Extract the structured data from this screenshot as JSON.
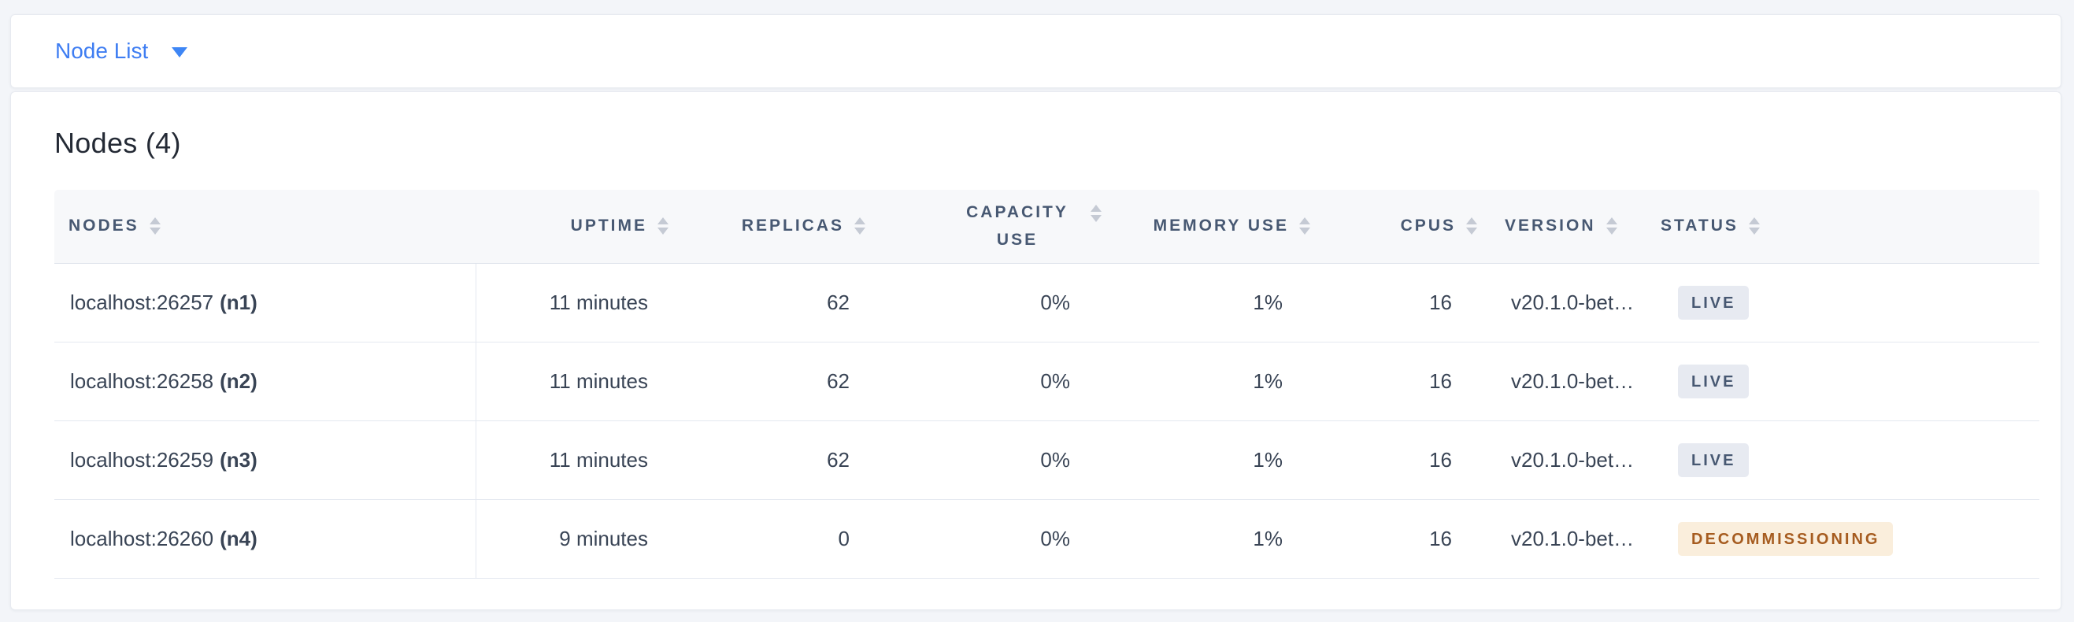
{
  "dropdown": {
    "label": "Node List"
  },
  "panel": {
    "title": "Nodes (4)"
  },
  "table": {
    "columns": [
      {
        "key": "nodes",
        "label": "NODES"
      },
      {
        "key": "uptime",
        "label": "UPTIME"
      },
      {
        "key": "replicas",
        "label": "REPLICAS"
      },
      {
        "key": "capacity_use",
        "label": "CAPACITY USE"
      },
      {
        "key": "memory_use",
        "label": "MEMORY USE"
      },
      {
        "key": "cpus",
        "label": "CPUS"
      },
      {
        "key": "version",
        "label": "VERSION"
      },
      {
        "key": "status",
        "label": "STATUS"
      }
    ],
    "rows": [
      {
        "address": "localhost:26257",
        "node_id": "(n1)",
        "uptime": "11 minutes",
        "replicas": "62",
        "capacity_use": "0%",
        "memory_use": "1%",
        "cpus": "16",
        "version": "v20.1.0-bet…",
        "status": "LIVE",
        "status_type": "live"
      },
      {
        "address": "localhost:26258",
        "node_id": "(n2)",
        "uptime": "11 minutes",
        "replicas": "62",
        "capacity_use": "0%",
        "memory_use": "1%",
        "cpus": "16",
        "version": "v20.1.0-bet…",
        "status": "LIVE",
        "status_type": "live"
      },
      {
        "address": "localhost:26259",
        "node_id": "(n3)",
        "uptime": "11 minutes",
        "replicas": "62",
        "capacity_use": "0%",
        "memory_use": "1%",
        "cpus": "16",
        "version": "v20.1.0-bet…",
        "status": "LIVE",
        "status_type": "live"
      },
      {
        "address": "localhost:26260",
        "node_id": "(n4)",
        "uptime": "9 minutes",
        "replicas": "0",
        "capacity_use": "0%",
        "memory_use": "1%",
        "cpus": "16",
        "version": "v20.1.0-bet…",
        "status": "DECOMMISSIONING",
        "status_type": "decommissioning"
      }
    ]
  },
  "colors": {
    "page_background": "#F3F5F9",
    "accent_blue": "#3E7DF2",
    "header_text": "#475872",
    "cell_text": "#394455",
    "badge_live_bg": "#E7EAF1",
    "badge_live_text": "#475872",
    "badge_decommissioning_bg": "#FAEEDC",
    "badge_decommissioning_text": "#A65C20"
  }
}
